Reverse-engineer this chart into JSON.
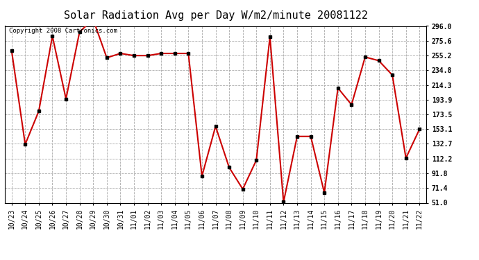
{
  "title": "Solar Radiation Avg per Day W/m2/minute 20081122",
  "copyright_text": "Copyright 2008 Cartronics.com",
  "x_labels": [
    "10/23",
    "10/24",
    "10/25",
    "10/26",
    "10/27",
    "10/28",
    "10/29",
    "10/30",
    "10/31",
    "11/01",
    "11/02",
    "11/03",
    "11/04",
    "11/05",
    "11/06",
    "11/07",
    "11/08",
    "11/09",
    "11/10",
    "11/11",
    "11/12",
    "11/13",
    "11/14",
    "11/15",
    "11/16",
    "11/17",
    "11/18",
    "11/19",
    "11/20",
    "11/21",
    "11/22"
  ],
  "y_values": [
    262,
    132,
    178,
    282,
    195,
    288,
    305,
    252,
    258,
    255,
    255,
    258,
    258,
    258,
    88,
    157,
    100,
    70,
    110,
    281,
    52,
    143,
    143,
    65,
    210,
    187,
    253,
    248,
    228,
    113,
    153
  ],
  "y_ticks": [
    51.0,
    71.4,
    91.8,
    112.2,
    132.7,
    153.1,
    173.5,
    193.9,
    214.3,
    234.8,
    255.2,
    275.6,
    296.0
  ],
  "ylim_min": 51.0,
  "ylim_max": 296.0,
  "line_color": "#cc0000",
  "marker_color": "#000000",
  "bg_color": "#ffffff",
  "grid_color": "#aaaaaa",
  "title_fontsize": 11,
  "tick_fontsize": 7,
  "copyright_fontsize": 6.5
}
